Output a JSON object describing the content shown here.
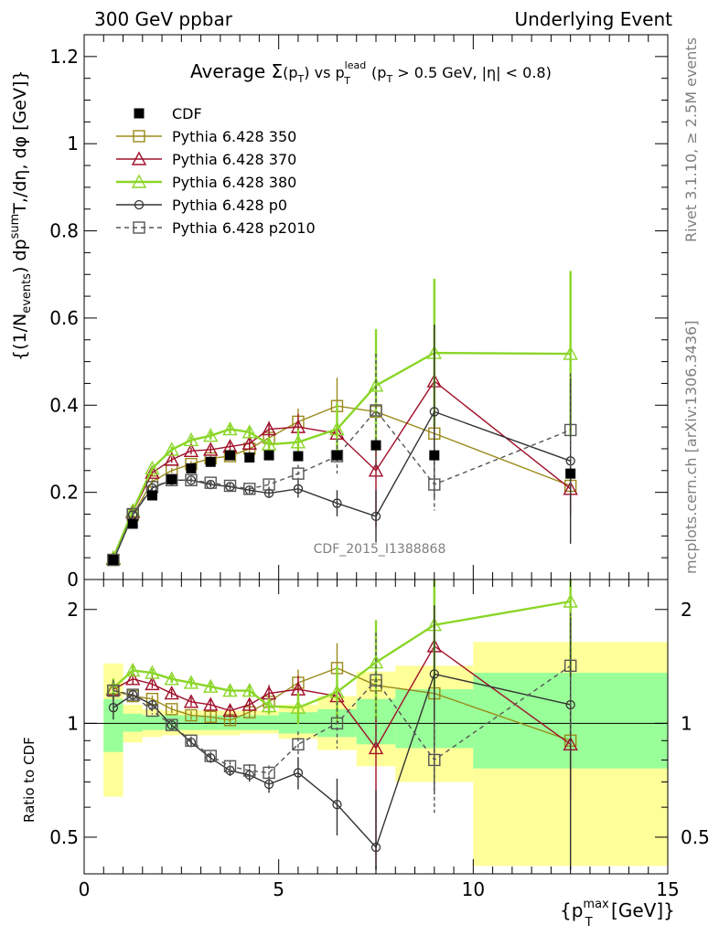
{
  "header": {
    "left": "300 GeV ppbar",
    "right": "Underlying Event"
  },
  "title": {
    "prefix": "Average ",
    "sigma": "Σ",
    "arg": "(p",
    "argsub": "T",
    "argclose": ")",
    "vs": " vs p",
    "lead_sup": "lead",
    "lead_sub": "T",
    "cond": " (p",
    "cond_sub": "T",
    "cond_rest": " > 0.5 GeV, |η| < 0.8)"
  },
  "watermark": "CDF_2015_I1388868",
  "side_text": {
    "rivet": "Rivet 3.1.10, ≥ 2.5M events",
    "mcplots": "mcplots.cern.ch [arXiv:1306.3436]"
  },
  "ylabel_main": "{(1/N_events) dp^sumT,/dη, dφ [GeV]}",
  "ylabel_ratio": "Ratio to CDF",
  "xlabel": "{p_T^max [GeV]}",
  "ticks": {
    "main_y": [
      "0",
      "0.2",
      "0.4",
      "0.6",
      "0.8",
      "1",
      "1.2"
    ],
    "ratio_y": [
      "0.5",
      "1",
      "2"
    ],
    "x": [
      "0",
      "5",
      "10",
      "15"
    ]
  },
  "chart_data": {
    "type": "line",
    "xlim": [
      0,
      15
    ],
    "main": {
      "ylim": [
        0,
        1.25
      ]
    },
    "ratio": {
      "ylim": [
        0.4,
        2.4
      ],
      "log": true
    },
    "x": [
      0.75,
      1.25,
      1.75,
      2.25,
      2.75,
      3.25,
      3.75,
      4.25,
      4.75,
      5.5,
      6.5,
      7.5,
      9.0,
      12.5
    ],
    "data": {
      "name": "CDF",
      "values": [
        0.045,
        0.128,
        0.193,
        0.23,
        0.255,
        0.27,
        0.285,
        0.28,
        0.285,
        0.283,
        0.285,
        0.308,
        0.285,
        0.243
      ],
      "ratio_band_inner": [
        {
          "x0": 0.5,
          "x1": 1.0,
          "lo": 0.84,
          "hi": 1.16
        },
        {
          "x0": 1.0,
          "x1": 1.5,
          "lo": 0.95,
          "hi": 1.06
        },
        {
          "x0": 1.5,
          "x1": 2.0,
          "lo": 0.96,
          "hi": 1.05
        },
        {
          "x0": 2.0,
          "x1": 2.5,
          "lo": 0.96,
          "hi": 1.05
        },
        {
          "x0": 2.5,
          "x1": 3.0,
          "lo": 0.96,
          "hi": 1.05
        },
        {
          "x0": 3.0,
          "x1": 3.5,
          "lo": 0.96,
          "hi": 1.05
        },
        {
          "x0": 3.5,
          "x1": 4.0,
          "lo": 0.96,
          "hi": 1.05
        },
        {
          "x0": 4.0,
          "x1": 4.5,
          "lo": 0.96,
          "hi": 1.05
        },
        {
          "x0": 4.5,
          "x1": 5.0,
          "lo": 0.96,
          "hi": 1.05
        },
        {
          "x0": 5.0,
          "x1": 6.0,
          "lo": 0.94,
          "hi": 1.07
        },
        {
          "x0": 6.0,
          "x1": 7.0,
          "lo": 0.92,
          "hi": 1.09
        },
        {
          "x0": 7.0,
          "x1": 8.0,
          "lo": 0.88,
          "hi": 1.16
        },
        {
          "x0": 8.0,
          "x1": 10.0,
          "lo": 0.86,
          "hi": 1.23
        },
        {
          "x0": 10.0,
          "x1": 15.0,
          "lo": 0.76,
          "hi": 1.36
        }
      ],
      "ratio_band_outer": [
        {
          "x0": 0.5,
          "x1": 1.0,
          "lo": 0.64,
          "hi": 1.44
        },
        {
          "x0": 1.0,
          "x1": 1.5,
          "lo": 0.89,
          "hi": 1.12
        },
        {
          "x0": 1.5,
          "x1": 2.0,
          "lo": 0.92,
          "hi": 1.09
        },
        {
          "x0": 2.0,
          "x1": 2.5,
          "lo": 0.93,
          "hi": 1.08
        },
        {
          "x0": 2.5,
          "x1": 3.0,
          "lo": 0.93,
          "hi": 1.08
        },
        {
          "x0": 3.0,
          "x1": 3.5,
          "lo": 0.93,
          "hi": 1.08
        },
        {
          "x0": 3.5,
          "x1": 4.0,
          "lo": 0.93,
          "hi": 1.08
        },
        {
          "x0": 4.0,
          "x1": 4.5,
          "lo": 0.94,
          "hi": 1.08
        },
        {
          "x0": 4.5,
          "x1": 5.0,
          "lo": 0.94,
          "hi": 1.08
        },
        {
          "x0": 5.0,
          "x1": 6.0,
          "lo": 0.91,
          "hi": 1.12
        },
        {
          "x0": 6.0,
          "x1": 7.0,
          "lo": 0.85,
          "hi": 1.18
        },
        {
          "x0": 7.0,
          "x1": 8.0,
          "lo": 0.77,
          "hi": 1.37
        },
        {
          "x0": 8.0,
          "x1": 10.0,
          "lo": 0.7,
          "hi": 1.42
        },
        {
          "x0": 10.0,
          "x1": 15.0,
          "lo": 0.42,
          "hi": 1.64
        }
      ]
    },
    "series": [
      {
        "name": "Pythia 6.428 350",
        "color": "#9a8a1a",
        "marker": "square-open",
        "dash": false,
        "values": [
          0.045,
          0.148,
          0.225,
          0.25,
          0.265,
          0.278,
          0.283,
          0.3,
          0.325,
          0.362,
          0.398,
          0.385,
          0.335,
          0.215
        ],
        "err": [
          0.003,
          0.005,
          0.005,
          0.006,
          0.007,
          0.008,
          0.009,
          0.01,
          0.015,
          0.03,
          0.065,
          0.13,
          0.1,
          0.06
        ],
        "ratio": [
          1.22,
          1.18,
          1.16,
          1.09,
          1.05,
          1.04,
          1.02,
          1.07,
          1.14,
          1.28,
          1.4,
          1.26,
          1.2,
          0.9
        ]
      },
      {
        "name": "Pythia 6.428 370",
        "color": "#a0102a",
        "marker": "triangle-open",
        "dash": false,
        "values": [
          0.048,
          0.155,
          0.245,
          0.275,
          0.295,
          0.298,
          0.305,
          0.312,
          0.345,
          0.35,
          0.335,
          0.25,
          0.455,
          0.208
        ],
        "err": [
          0.003,
          0.005,
          0.006,
          0.007,
          0.008,
          0.009,
          0.01,
          0.012,
          0.018,
          0.03,
          0.05,
          0.13,
          0.18,
          0.06
        ],
        "ratio": [
          1.23,
          1.31,
          1.27,
          1.2,
          1.14,
          1.12,
          1.08,
          1.12,
          1.2,
          1.23,
          1.18,
          0.86,
          1.6,
          0.88
        ]
      },
      {
        "name": "Pythia 6.428 380",
        "color": "#8ad628",
        "marker": "triangle-open",
        "dash": false,
        "values": [
          0.05,
          0.158,
          0.255,
          0.298,
          0.32,
          0.33,
          0.345,
          0.338,
          0.31,
          0.315,
          0.345,
          0.445,
          0.52,
          0.518
        ],
        "err": [
          0.003,
          0.005,
          0.006,
          0.007,
          0.008,
          0.009,
          0.01,
          0.012,
          0.015,
          0.03,
          0.06,
          0.13,
          0.17,
          0.19
        ],
        "ratio": [
          1.24,
          1.38,
          1.36,
          1.31,
          1.28,
          1.25,
          1.22,
          1.22,
          1.11,
          1.1,
          1.21,
          1.45,
          1.82,
          2.1
        ]
      },
      {
        "name": "Pythia 6.428 p0",
        "color": "#333333",
        "marker": "circle-open",
        "dash": false,
        "values": [
          0.043,
          0.148,
          0.21,
          0.228,
          0.228,
          0.218,
          0.213,
          0.205,
          0.198,
          0.208,
          0.175,
          0.145,
          0.385,
          0.272
        ],
        "err": [
          0.003,
          0.005,
          0.005,
          0.006,
          0.006,
          0.006,
          0.007,
          0.008,
          0.01,
          0.02,
          0.03,
          0.06,
          0.2,
          0.19
        ],
        "ratio": [
          1.1,
          1.19,
          1.12,
          0.99,
          0.89,
          0.81,
          0.75,
          0.73,
          0.69,
          0.74,
          0.61,
          0.47,
          1.35,
          1.12
        ]
      },
      {
        "name": "Pythia 6.428 p2010",
        "color": "#555555",
        "marker": "square-open",
        "dash": true,
        "values": [
          0.045,
          0.15,
          0.212,
          0.228,
          0.228,
          0.222,
          0.215,
          0.208,
          0.218,
          0.243,
          0.283,
          0.388,
          0.218,
          0.343
        ],
        "err": [
          0.003,
          0.005,
          0.005,
          0.006,
          0.006,
          0.006,
          0.007,
          0.008,
          0.01,
          0.02,
          0.04,
          0.13,
          0.06,
          0.13
        ],
        "ratio": [
          1.22,
          1.19,
          1.08,
          0.99,
          0.9,
          0.82,
          0.77,
          0.75,
          0.74,
          0.88,
          1.0,
          1.3,
          0.8,
          1.42
        ]
      }
    ]
  }
}
